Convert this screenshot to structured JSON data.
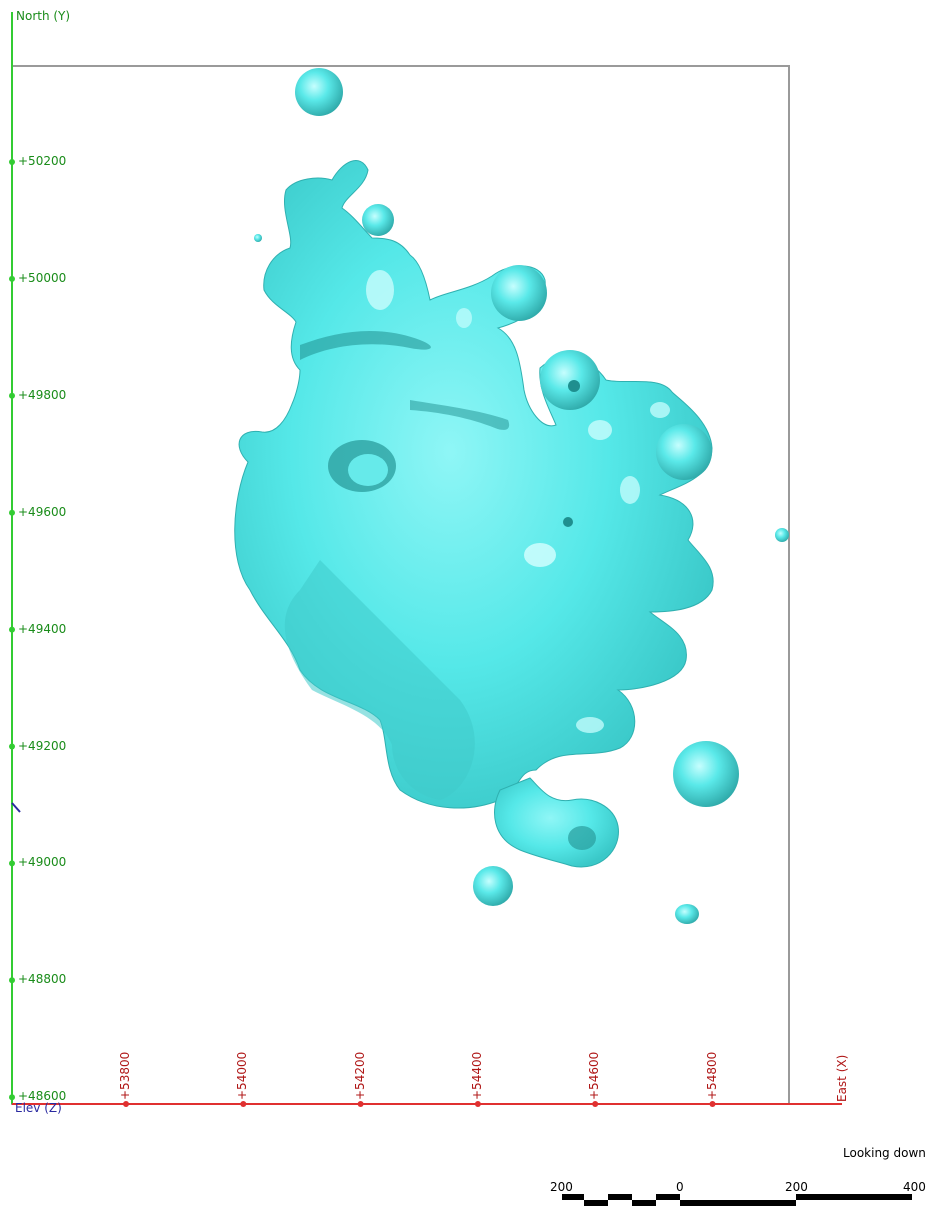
{
  "axes": {
    "north_label": "North (Y)",
    "east_label": "East (X)",
    "elev_label": "Elev (Z)",
    "north_color": "#33cc33",
    "east_color": "#e03030",
    "frame_color": "#9a9a9a"
  },
  "y_ticks": [
    "+50200",
    "+50000",
    "+49800",
    "+49600",
    "+49400",
    "+49200",
    "+49000",
    "+48800",
    "+48600"
  ],
  "x_ticks": [
    "+53800",
    "+54000",
    "+54200",
    "+54400",
    "+54600",
    "+54800"
  ],
  "view": {
    "label": "Looking down"
  },
  "scale_bar": {
    "labels": [
      "200",
      "0",
      "200",
      "400"
    ]
  },
  "body": {
    "color": "#55e8e8",
    "shade": "#39c4c4",
    "highlight": "#bdfcfc"
  }
}
